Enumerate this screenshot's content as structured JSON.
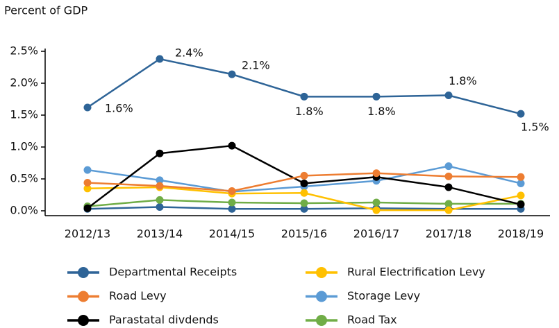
{
  "chart_data": {
    "type": "line",
    "title": "Percent of GDP",
    "categories": [
      "2012/13",
      "2013/14",
      "2014/15",
      "2015/16",
      "2016/17",
      "2017/18",
      "2018/19"
    ],
    "ylim": [
      0,
      2.5
    ],
    "yticks": [
      {
        "value": 0,
        "label": "0.0%"
      },
      {
        "value": 0.5,
        "label": "0.5%"
      },
      {
        "value": 1,
        "label": "1.0%"
      },
      {
        "value": 1.5,
        "label": "1.5%"
      },
      {
        "value": 2,
        "label": "2.0%"
      },
      {
        "value": 2.5,
        "label": "2.5%"
      }
    ],
    "series": [
      {
        "name": "Departmental Receipts",
        "color": "#2e6497",
        "values": [
          1.62,
          2.38,
          2.14,
          1.79,
          1.79,
          1.81,
          1.52
        ],
        "value_labels": [
          "1.6%",
          "2.4%",
          "2.1%",
          "1.8%",
          "1.8%",
          "1.8%",
          "1.5%"
        ]
      },
      {
        "name": "Road Levy",
        "color": "#ed7d31",
        "values": [
          0.44,
          0.39,
          0.31,
          0.55,
          0.59,
          0.54,
          0.53
        ]
      },
      {
        "name": "Parastatal divdends",
        "color": "#000000",
        "values": [
          0.04,
          0.9,
          1.02,
          0.43,
          0.53,
          0.37,
          0.1
        ]
      },
      {
        "name": "Rural Electrification Levy",
        "color": "#ffc000",
        "values": [
          0.35,
          0.37,
          0.27,
          0.28,
          0.01,
          0.01,
          0.24
        ]
      },
      {
        "name": "Storage Levy",
        "color": "#5b9bd5",
        "values": [
          0.64,
          0.48,
          0.3,
          0.38,
          0.47,
          0.7,
          0.43
        ]
      },
      {
        "name": "Road Tax",
        "color": "#70ad47",
        "values": [
          0.07,
          0.17,
          0.13,
          0.12,
          0.13,
          0.11,
          0.11
        ]
      },
      {
        "color": "#2e6497",
        "values": [
          0.03,
          0.06,
          0.03,
          0.03,
          0.04,
          0.03,
          0.03
        ]
      }
    ]
  }
}
